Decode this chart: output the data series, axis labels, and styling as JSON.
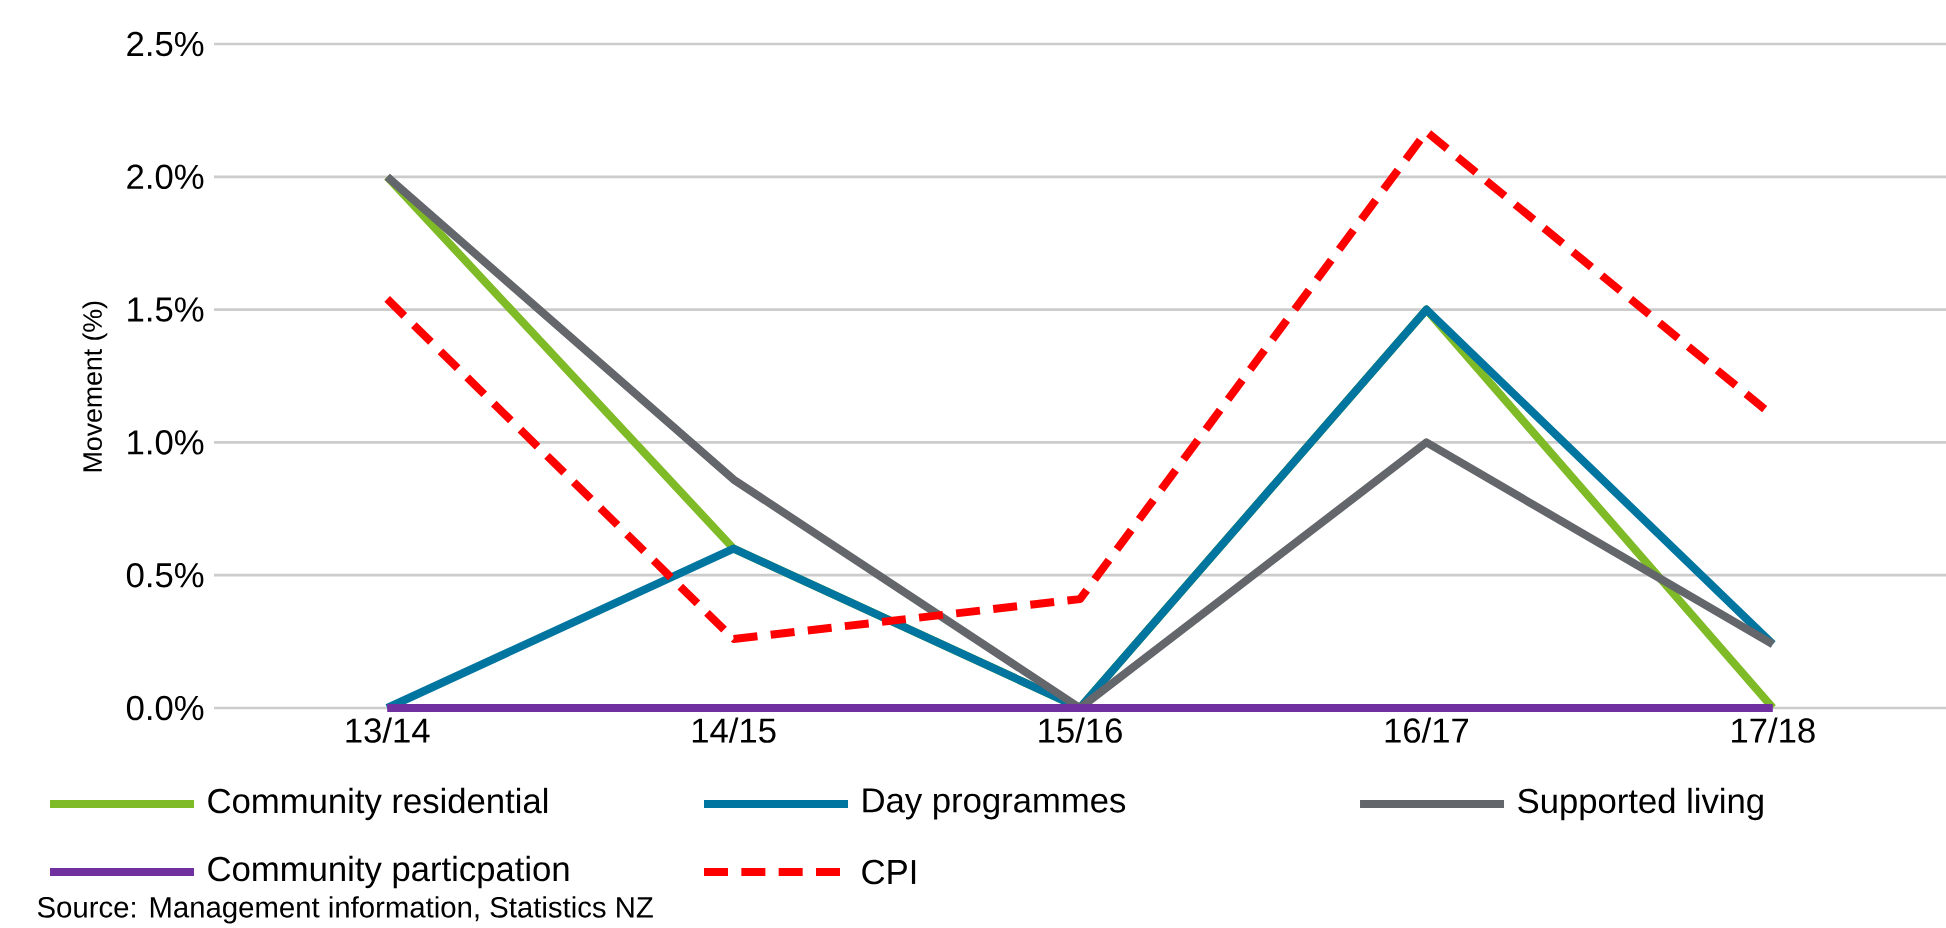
{
  "chart_data": {
    "type": "line",
    "ylabel": "Movement  (%)",
    "categories": [
      "13/14",
      "14/15",
      "15/16",
      "16/17",
      "17/18"
    ],
    "series": [
      {
        "name": "Community residential",
        "color": "#7fba27",
        "values": [
          2.0,
          0.6,
          0,
          1.5,
          0
        ]
      },
      {
        "name": "Day programmes",
        "color": "#00759f",
        "values": [
          0,
          0.6,
          0,
          1.5,
          0.24
        ]
      },
      {
        "name": "Supported living",
        "color": "#63666a",
        "values": [
          2.0,
          0.86,
          0,
          1.0,
          0.24
        ]
      },
      {
        "name": "Community particpation",
        "color": "#7030a0",
        "values": [
          0,
          0,
          0,
          0,
          0
        ]
      },
      {
        "name": "CPI",
        "color": "#ff0000",
        "line_style": "dashed",
        "values": [
          1.54,
          0.26,
          0.41,
          2.17,
          1.1
        ]
      }
    ],
    "ylim": [
      0,
      2.5
    ],
    "yticks": [
      {
        "value": 0,
        "label": "0.0%"
      },
      {
        "value": 0.5,
        "label": "0.5%"
      },
      {
        "value": 1.0,
        "label": "1.0%"
      },
      {
        "value": 1.5,
        "label": "1.5%"
      },
      {
        "value": 2.0,
        "label": "2.0%"
      },
      {
        "value": 2.5,
        "label": "2.5%"
      }
    ],
    "grid": "y",
    "legend": "bottom",
    "marker": "none",
    "annotations": [
      "Source: Management information, Statistics NZ"
    ]
  }
}
